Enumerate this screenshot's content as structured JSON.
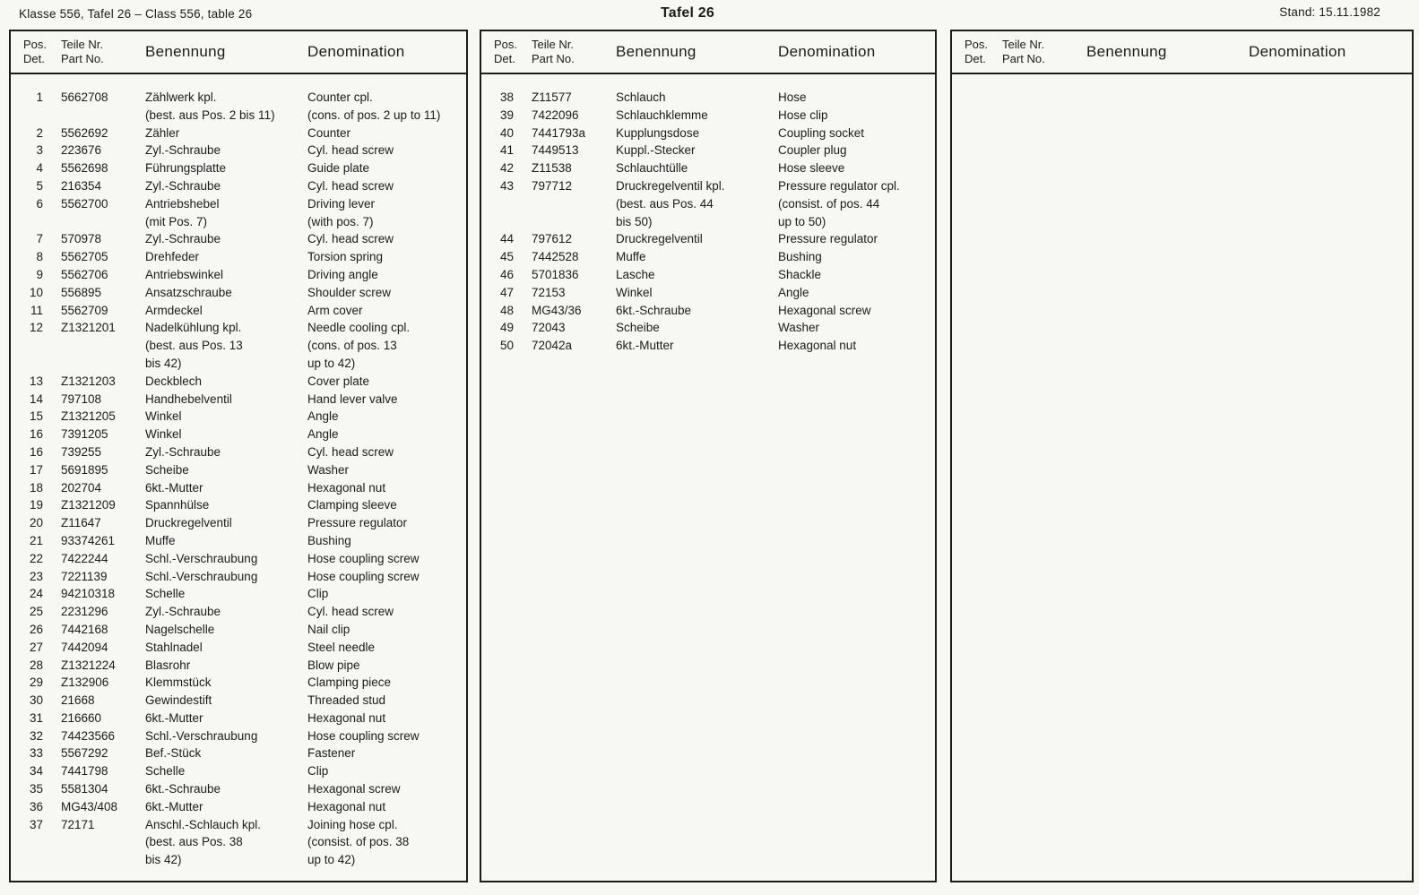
{
  "page": {
    "title_left": "Klasse 556, Tafel 26 – Class 556, table 26",
    "title_center": "Tafel 26",
    "stand": "Stand: 15.11.1982"
  },
  "columns": {
    "pos_line1": "Pos.",
    "pos_line2": "Det.",
    "part_line1": "Teile Nr.",
    "part_line2": "Part No.",
    "benennung": "Benennung",
    "denomination": "Denomination"
  },
  "colors": {
    "paper": "#f7f7f4",
    "ink": "#1b1b1b",
    "border": "#1c1c1c"
  },
  "tables": [
    {
      "id": "left",
      "rows": [
        [
          "1",
          "5662708",
          "Zählwerk kpl.",
          "Counter cpl."
        ],
        [
          "",
          "",
          "(best. aus Pos. 2 bis 11)",
          "(cons. of pos. 2 up to 11)"
        ],
        [
          "2",
          "5562692",
          "Zähler",
          "Counter"
        ],
        [
          "3",
          "223676",
          "Zyl.-Schraube",
          "Cyl. head screw"
        ],
        [
          "4",
          "5562698",
          "Führungsplatte",
          "Guide plate"
        ],
        [
          "5",
          "216354",
          "Zyl.-Schraube",
          "Cyl. head screw"
        ],
        [
          "6",
          "5562700",
          "Antriebshebel",
          "Driving lever"
        ],
        [
          "",
          "",
          "(mit Pos. 7)",
          "(with pos. 7)"
        ],
        [
          "7",
          "570978",
          "Zyl.-Schraube",
          "Cyl. head screw"
        ],
        [
          "8",
          "5562705",
          "Drehfeder",
          "Torsion spring"
        ],
        [
          "9",
          "5562706",
          "Antriebswinkel",
          "Driving angle"
        ],
        [
          "10",
          "556895",
          "Ansatzschraube",
          "Shoulder screw"
        ],
        [
          "11",
          "5562709",
          "Armdeckel",
          "Arm cover"
        ],
        [
          "12",
          "Z1321201",
          "Nadelkühlung kpl.",
          "Needle cooling cpl."
        ],
        [
          "",
          "",
          "(best. aus Pos. 13",
          "(cons. of pos. 13"
        ],
        [
          "",
          "",
          "bis 42)",
          "up to 42)"
        ],
        [
          "13",
          "Z1321203",
          "Deckblech",
          "Cover plate"
        ],
        [
          "14",
          "797108",
          "Handhebelventil",
          "Hand lever valve"
        ],
        [
          "15",
          "Z1321205",
          "Winkel",
          "Angle"
        ],
        [
          "16",
          "7391205",
          "Winkel",
          "Angle"
        ],
        [
          "16",
          "739255",
          "Zyl.-Schraube",
          "Cyl. head screw"
        ],
        [
          "17",
          "5691895",
          "Scheibe",
          "Washer"
        ],
        [
          "18",
          "202704",
          "6kt.-Mutter",
          "Hexagonal nut"
        ],
        [
          "19",
          "Z1321209",
          "Spannhülse",
          "Clamping sleeve"
        ],
        [
          "20",
          "Z11647",
          "Druckregelventil",
          "Pressure regulator"
        ],
        [
          "21",
          "93374261",
          "Muffe",
          "Bushing"
        ],
        [
          "22",
          "7422244",
          "Schl.-Verschraubung",
          "Hose coupling screw"
        ],
        [
          "23",
          "7221139",
          "Schl.-Verschraubung",
          "Hose coupling screw"
        ],
        [
          "24",
          "94210318",
          "Schelle",
          "Clip"
        ],
        [
          "25",
          "2231296",
          "Zyl.-Schraube",
          "Cyl. head screw"
        ],
        [
          "26",
          "7442168",
          "Nagelschelle",
          "Nail clip"
        ],
        [
          "27",
          "7442094",
          "Stahlnadel",
          "Steel needle"
        ],
        [
          "28",
          "Z1321224",
          "Blasrohr",
          "Blow pipe"
        ],
        [
          "29",
          "Z132906",
          "Klemmstück",
          "Clamping piece"
        ],
        [
          "30",
          "21668",
          "Gewindestift",
          "Threaded stud"
        ],
        [
          "31",
          "216660",
          "6kt.-Mutter",
          "Hexagonal nut"
        ],
        [
          "32",
          "74423566",
          "Schl.-Verschraubung",
          "Hose coupling screw"
        ],
        [
          "33",
          "5567292",
          "Bef.-Stück",
          "Fastener"
        ],
        [
          "34",
          "7441798",
          "Schelle",
          "Clip"
        ],
        [
          "35",
          "5581304",
          "6kt.-Schraube",
          "Hexagonal screw"
        ],
        [
          "36",
          "MG43/408",
          "6kt.-Mutter",
          "Hexagonal nut"
        ],
        [
          "37",
          "72171",
          "Anschl.-Schlauch kpl.",
          "Joining hose cpl."
        ],
        [
          "",
          "",
          "(best. aus Pos. 38",
          "(consist. of pos. 38"
        ],
        [
          "",
          "",
          "bis 42)",
          "up to 42)"
        ]
      ]
    },
    {
      "id": "middle",
      "rows": [
        [
          "38",
          "Z11577",
          "Schlauch",
          "Hose"
        ],
        [
          "39",
          "7422096",
          "Schlauchklemme",
          "Hose clip"
        ],
        [
          "40",
          "7441793a",
          "Kupplungsdose",
          "Coupling socket"
        ],
        [
          "41",
          "7449513",
          "Kuppl.-Stecker",
          "Coupler plug"
        ],
        [
          "42",
          "Z11538",
          "Schlauchtülle",
          "Hose sleeve"
        ],
        [
          "43",
          "797712",
          "Druckregelventil kpl.",
          "Pressure regulator cpl."
        ],
        [
          "",
          "",
          "(best. aus Pos. 44",
          "(consist. of pos. 44"
        ],
        [
          "",
          "",
          "bis 50)",
          "up to 50)"
        ],
        [
          "44",
          "797612",
          "Druckregelventil",
          "Pressure regulator"
        ],
        [
          "45",
          "7442528",
          "Muffe",
          "Bushing"
        ],
        [
          "46",
          "5701836",
          "Lasche",
          "Shackle"
        ],
        [
          "47",
          "72153",
          "Winkel",
          "Angle"
        ],
        [
          "48",
          "MG43/36",
          "6kt.-Schraube",
          "Hexagonal screw"
        ],
        [
          "49",
          "72043",
          "Scheibe",
          "Washer"
        ],
        [
          "50",
          "72042a",
          "6kt.-Mutter",
          "Hexagonal nut"
        ]
      ]
    },
    {
      "id": "right",
      "rows": []
    }
  ]
}
